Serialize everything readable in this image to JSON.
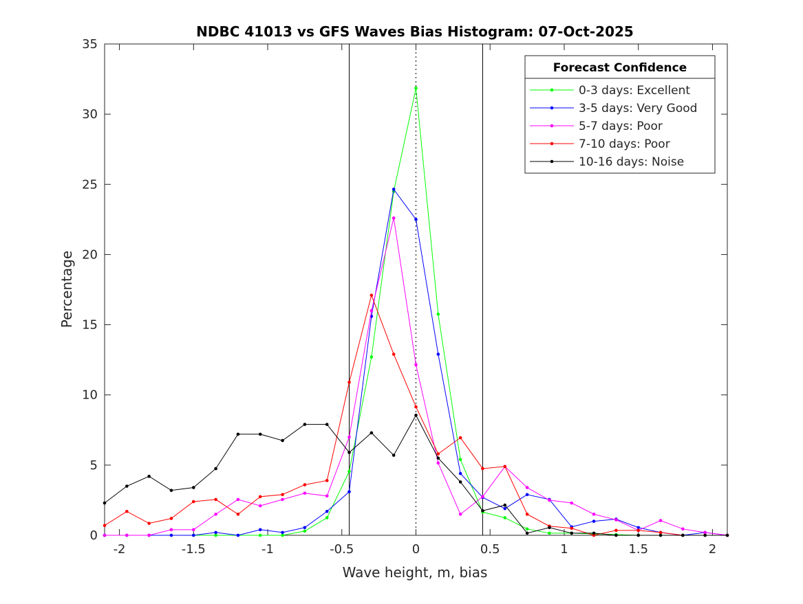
{
  "chart_data": {
    "type": "line",
    "title": "NDBC 41013 vs GFS Waves Bias Histogram: 07-Oct-2025",
    "xlabel": "Wave height, m, bias",
    "ylabel": "Percentage",
    "xlim": [
      -2.1,
      2.1
    ],
    "ylim": [
      0,
      35
    ],
    "xticks": [
      -2,
      -1.5,
      -1,
      -0.5,
      0,
      0.5,
      1,
      1.5,
      2
    ],
    "xtick_labels": [
      "-2",
      "-1.5",
      "-1",
      "-0.5",
      "0",
      "0.5",
      "1",
      "1.5",
      "2"
    ],
    "yticks": [
      0,
      5,
      10,
      15,
      20,
      25,
      30,
      35
    ],
    "ytick_labels": [
      "0",
      "5",
      "10",
      "15",
      "20",
      "25",
      "30",
      "35"
    ],
    "vlines": [
      {
        "x": -0.45,
        "style": "solid"
      },
      {
        "x": 0,
        "style": "dotted"
      },
      {
        "x": 0.45,
        "style": "solid"
      }
    ],
    "legend": {
      "title": "Forecast Confidence",
      "placement": "top-right"
    },
    "x": [
      -2.1,
      -1.95,
      -1.8,
      -1.65,
      -1.5,
      -1.35,
      -1.2,
      -1.05,
      -0.9,
      -0.75,
      -0.6,
      -0.45,
      -0.3,
      -0.15,
      0,
      0.15,
      0.3,
      0.45,
      0.6,
      0.75,
      0.9,
      1.05,
      1.2,
      1.35,
      1.5,
      1.65,
      1.8,
      1.95,
      2.1
    ],
    "series": [
      {
        "name": "0-3 days: Excellent",
        "color": "#00ff00",
        "values": [
          0,
          0,
          0,
          0,
          0,
          0,
          0,
          0,
          0,
          0.3,
          1.25,
          4.55,
          12.7,
          24.5,
          31.85,
          15.75,
          5.4,
          1.65,
          1.25,
          0.45,
          0.15,
          0.15,
          0.1,
          0.05,
          0,
          0,
          0,
          0,
          0
        ]
      },
      {
        "name": "3-5 days: Very Good",
        "color": "#0000ff",
        "values": [
          0,
          0,
          0,
          0,
          0,
          0.2,
          0,
          0.4,
          0.2,
          0.55,
          1.7,
          3.1,
          15.6,
          24.65,
          22.5,
          12.9,
          4.4,
          2.7,
          1.9,
          2.9,
          2.55,
          0.6,
          1.0,
          1.15,
          0.55,
          0.2,
          0,
          0.2,
          0
        ]
      },
      {
        "name": "5-7 days: Poor",
        "color": "#ff00ff",
        "values": [
          0,
          0,
          0,
          0.4,
          0.4,
          1.5,
          2.55,
          2.1,
          2.55,
          3.0,
          2.8,
          7.0,
          16.0,
          22.6,
          12.15,
          5.15,
          1.5,
          2.75,
          4.9,
          3.4,
          2.5,
          2.3,
          1.5,
          1.1,
          0.35,
          1.05,
          0.45,
          0.2,
          0
        ]
      },
      {
        "name": "7-10 days: Poor",
        "color": "#ff0000",
        "values": [
          0.7,
          1.7,
          0.85,
          1.2,
          2.4,
          2.55,
          1.5,
          2.75,
          2.9,
          3.6,
          3.9,
          10.9,
          17.1,
          12.9,
          9.15,
          5.8,
          6.95,
          4.75,
          4.9,
          1.5,
          0.65,
          0.5,
          0,
          0.35,
          0.35,
          0.2,
          0,
          0,
          0
        ]
      },
      {
        "name": "10-16 days: Noise",
        "color": "#000000",
        "values": [
          2.3,
          3.5,
          4.2,
          3.2,
          3.4,
          4.75,
          7.2,
          7.2,
          6.75,
          7.9,
          7.9,
          5.9,
          7.3,
          5.7,
          8.55,
          5.5,
          3.8,
          1.75,
          2.15,
          0.15,
          0.55,
          0.15,
          0.15,
          0,
          0,
          0,
          0,
          0,
          0
        ]
      }
    ]
  }
}
